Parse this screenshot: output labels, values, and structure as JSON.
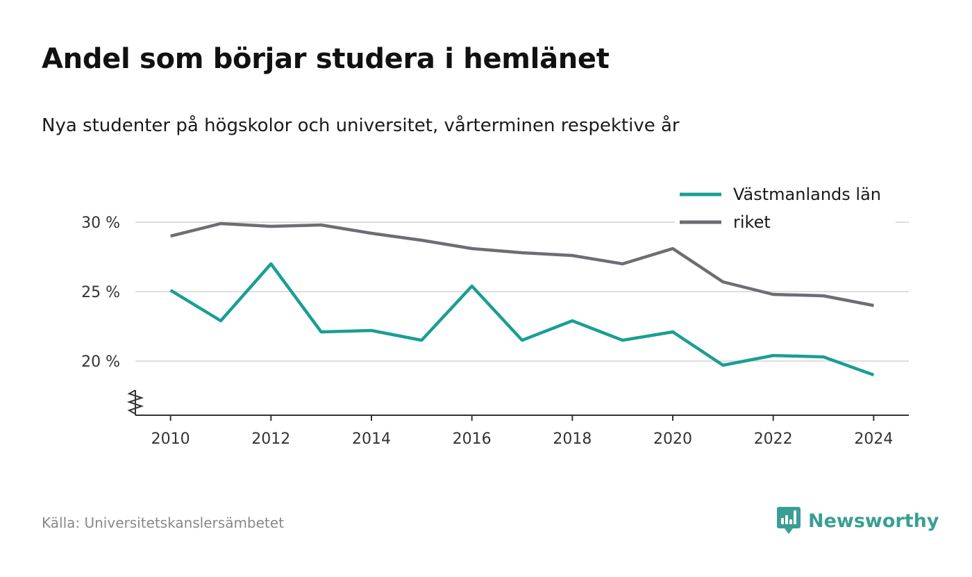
{
  "header": {
    "title": "Andel som börjar studera i hemlänet",
    "subtitle": "Nya studenter på högskolor och universitet, vårterminen respektive år"
  },
  "footer": {
    "source": "Källa: Universitetskanslersämbetet",
    "brand": "Newsworthy"
  },
  "colors": {
    "vastmanland": "#1a9e94",
    "riket": "#6e6d73",
    "grid": "#dddddd",
    "axis": "#333333",
    "brand": "#3a9e94"
  },
  "chart_data": {
    "type": "line",
    "x": [
      2010,
      2011,
      2012,
      2013,
      2014,
      2015,
      2016,
      2017,
      2018,
      2019,
      2020,
      2021,
      2022,
      2023,
      2024
    ],
    "xticks": [
      2010,
      2012,
      2014,
      2016,
      2018,
      2020,
      2022,
      2024
    ],
    "xtick_labels": [
      "2010",
      "2012",
      "2014",
      "2016",
      "2018",
      "2020",
      "2022",
      "2024"
    ],
    "yticks": [
      20,
      25,
      30
    ],
    "ytick_labels": [
      "20 %",
      "25 %",
      "30 %"
    ],
    "ylim": [
      16.1,
      30.5
    ],
    "xlim": [
      2009.3,
      2024.7
    ],
    "grid": true,
    "legend_position": "top-right",
    "axis_break": true,
    "series": [
      {
        "name": "Västmanlands län",
        "color_key": "vastmanland",
        "values": [
          25.1,
          22.9,
          27.0,
          22.1,
          22.2,
          21.5,
          25.4,
          21.5,
          22.9,
          21.5,
          22.1,
          19.7,
          20.4,
          20.3,
          19.0
        ]
      },
      {
        "name": "riket",
        "color_key": "riket",
        "values": [
          29.0,
          29.9,
          29.7,
          29.8,
          29.2,
          28.7,
          28.1,
          27.8,
          27.6,
          27.0,
          28.1,
          25.7,
          24.8,
          24.7,
          24.0
        ]
      }
    ]
  }
}
